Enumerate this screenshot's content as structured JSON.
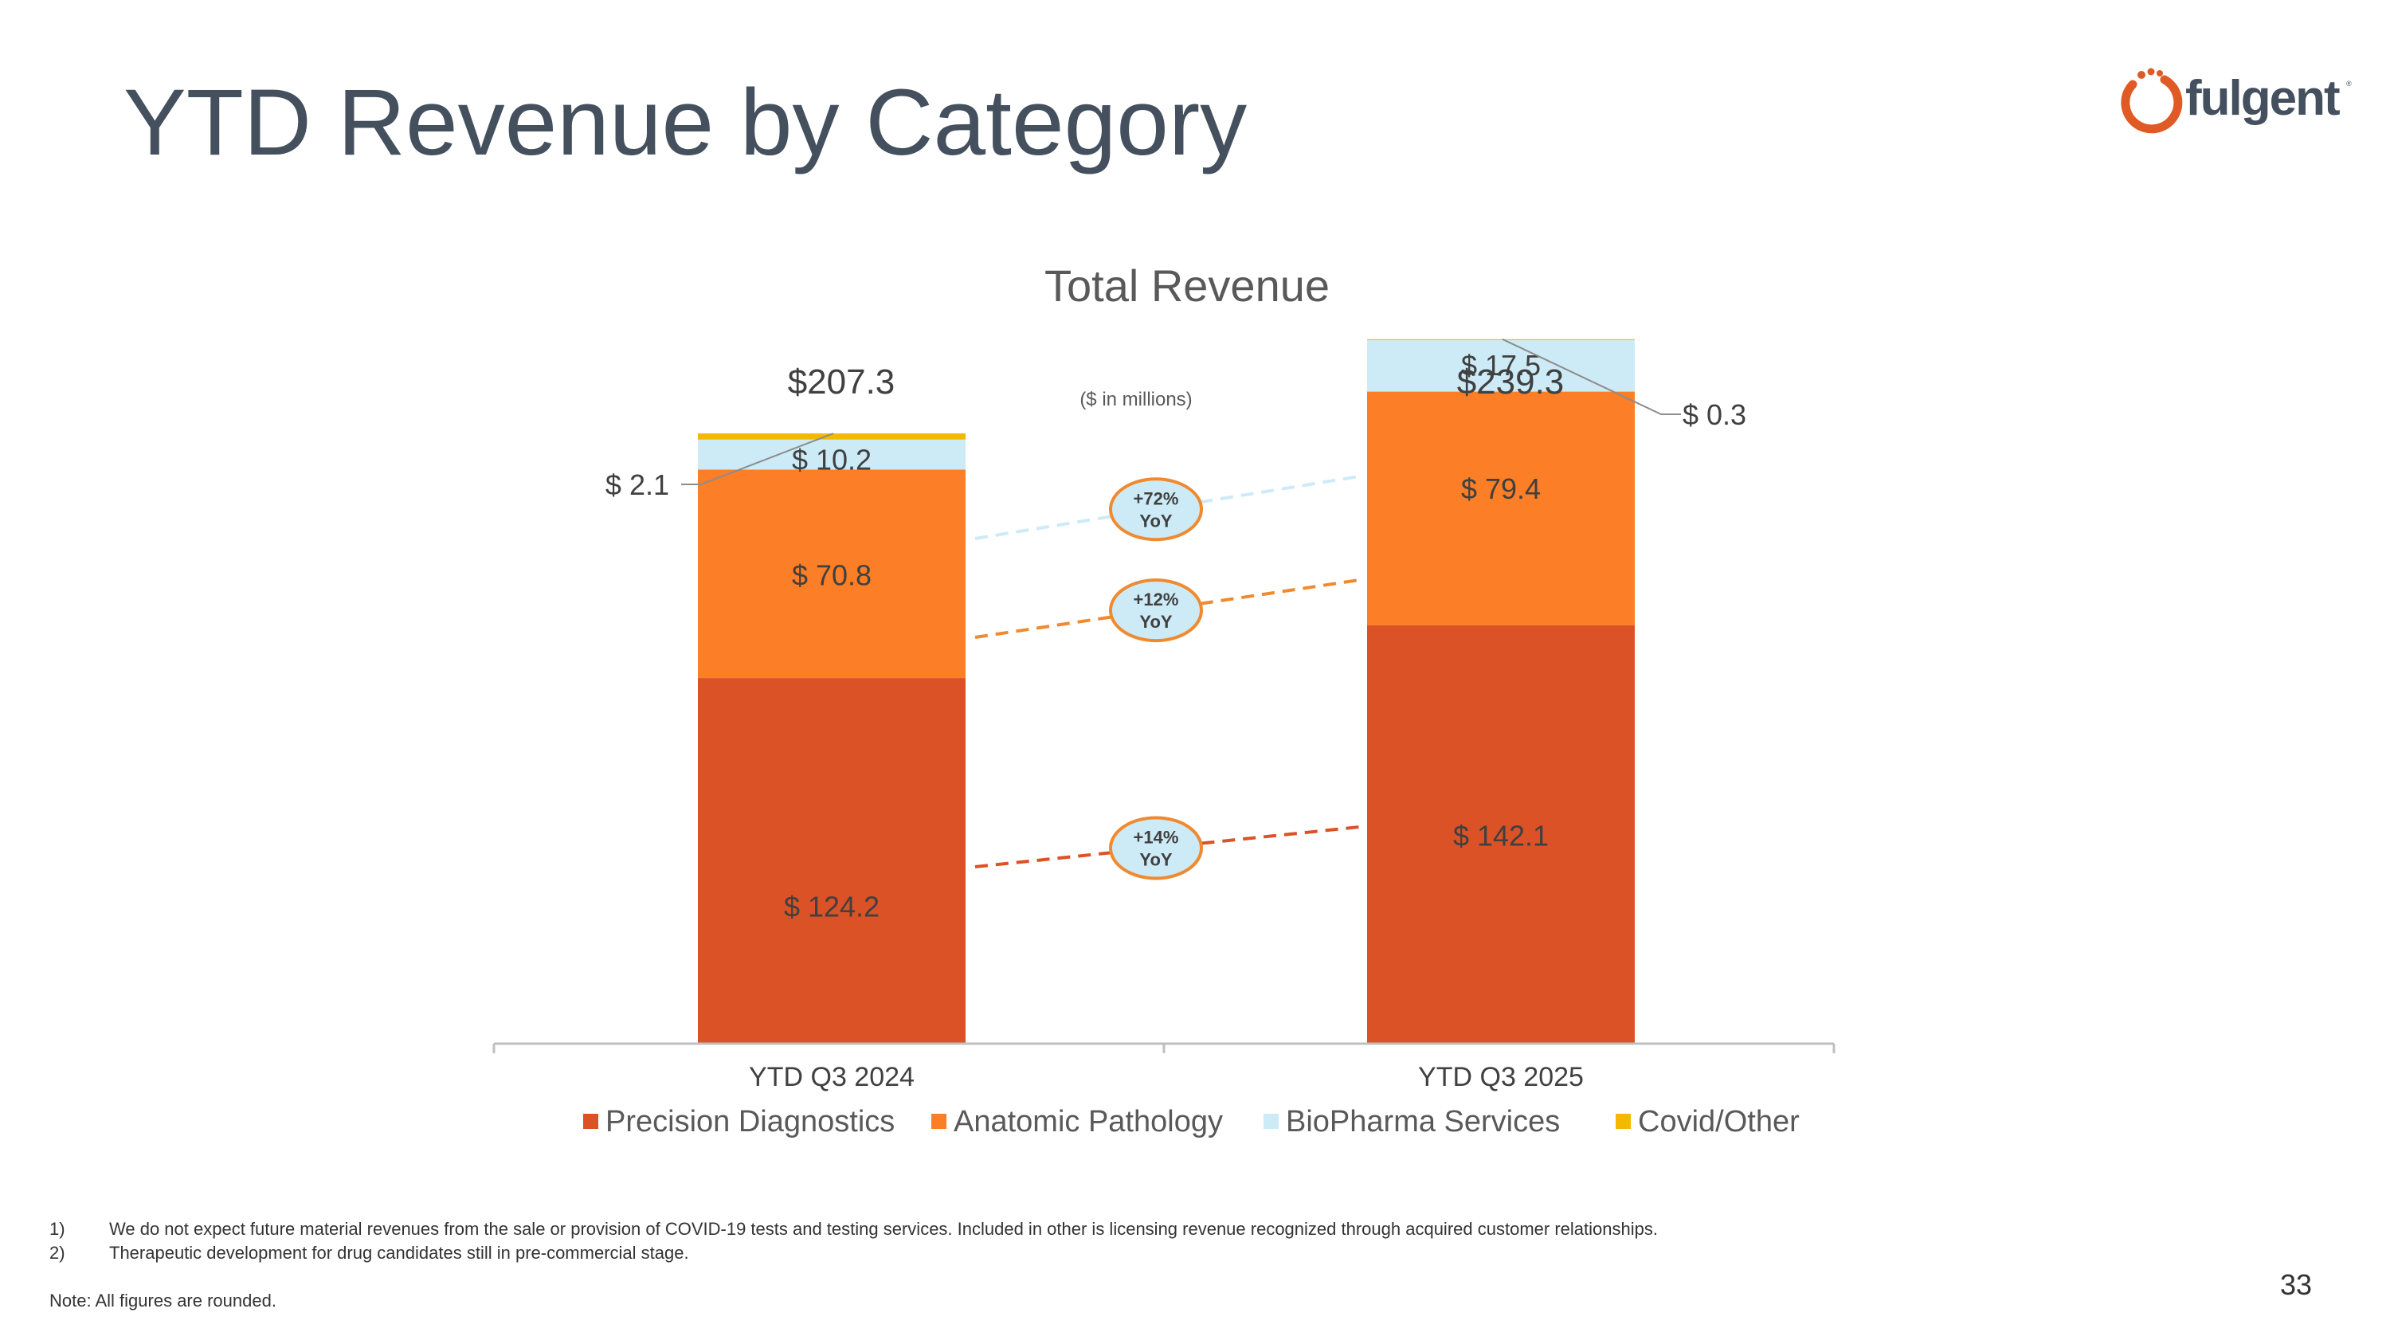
{
  "slide": {
    "title": "YTD Revenue by Category",
    "logo_text": "fulgent",
    "logo_tm": "®",
    "page_number": "33"
  },
  "footnotes": [
    {
      "num": "1)",
      "text": "We do not expect future material revenues from the sale or provision of COVID-19 tests and testing services. Included in other is licensing revenue recognized through acquired customer relationships."
    },
    {
      "num": "2)",
      "text": "Therapeutic development for drug candidates still in pre-commercial stage."
    }
  ],
  "note": "Note: All figures are rounded.",
  "chart_data": {
    "type": "bar",
    "stacked": true,
    "title": "Total Revenue",
    "subtitle": "($ in millions)",
    "categories": [
      "YTD Q3 2024",
      "YTD Q3 2025"
    ],
    "totals": [
      207.3,
      239.3
    ],
    "total_labels": [
      "$207.3",
      "$239.3"
    ],
    "series": [
      {
        "name": "Precision Diagnostics",
        "values": [
          124.2,
          142.1
        ],
        "labels": [
          "$ 124.2",
          "$ 142.1"
        ],
        "color": "#DA5226"
      },
      {
        "name": "Anatomic Pathology",
        "values": [
          70.8,
          79.4
        ],
        "labels": [
          "$ 70.8",
          "$ 79.4"
        ],
        "color": "#FC7E26"
      },
      {
        "name": "BioPharma Services",
        "values": [
          10.2,
          17.5
        ],
        "labels": [
          "$ 10.2",
          "$ 17.5"
        ],
        "color": "#CDEBF7"
      },
      {
        "name": "Covid/Other",
        "values": [
          2.1,
          0.3
        ],
        "labels": [
          "$ 2.1",
          "$ 0.3"
        ],
        "color": "#F5B800"
      }
    ],
    "growth_badges": [
      {
        "series": "Precision Diagnostics",
        "line1": "+14%",
        "line2": "YoY"
      },
      {
        "series": "Anatomic Pathology",
        "line1": "+12%",
        "line2": "YoY"
      },
      {
        "series": "BioPharma Services",
        "line1": "+72%",
        "line2": "YoY"
      }
    ],
    "ylim": [
      0,
      245
    ],
    "legend_position": "bottom",
    "badge_fill": "#CDEBF7",
    "badge_stroke": "#F08A30",
    "axis_color": "#BFBFBF"
  }
}
